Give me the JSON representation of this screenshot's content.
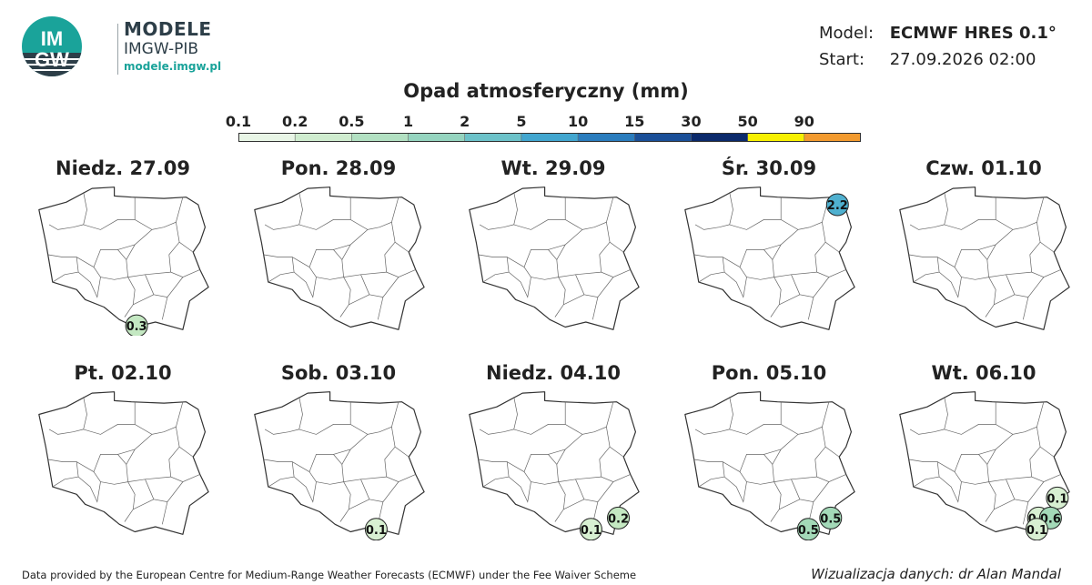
{
  "logo": {
    "mark_line1": "IM",
    "mark_line2": "GW",
    "title": "MODELE",
    "subtitle": "IMGW-PIB",
    "site": "modele.imgw.pl"
  },
  "info": {
    "model_label": "Model:",
    "model_value": "ECMWF HRES 0.1°",
    "start_label": "Start:",
    "start_value": "27.09.2026 02:00"
  },
  "title": "Opad atmosferyczny (mm)",
  "scale": {
    "labels": [
      "0.1",
      "0.2",
      "0.5",
      "1",
      "2",
      "5",
      "10",
      "15",
      "30",
      "50",
      "90"
    ],
    "colors": [
      "#e8f5e6",
      "#cfeccf",
      "#b2e0c2",
      "#95d4bf",
      "#6cc2c9",
      "#42a6cf",
      "#2a7cbd",
      "#1a4f98",
      "#0b2a6b",
      "#f7f000",
      "#f29a2e",
      "#e0231e"
    ]
  },
  "marker_colors": {
    "0.1": "#d8f0d2",
    "0.2": "#c4e8c2",
    "0.3": "#c4e8c2",
    "0.5": "#a3d9b8",
    "0.6": "#a3d9b8",
    "2.2": "#4fb0cf"
  },
  "maps": [
    {
      "day": "Niedz. 27.09",
      "markers": [
        {
          "value": "0.3",
          "lon": 19.9,
          "lat": 49.25
        }
      ]
    },
    {
      "day": "Pon. 28.09",
      "markers": []
    },
    {
      "day": "Wt. 29.09",
      "markers": []
    },
    {
      "day": "Śr. 30.09",
      "markers": [
        {
          "value": "2.2",
          "lon": 23.1,
          "lat": 54.1
        }
      ]
    },
    {
      "day": "Czw. 01.10",
      "markers": []
    },
    {
      "day": "Pt. 02.10",
      "markers": []
    },
    {
      "day": "Sob. 03.10",
      "markers": [
        {
          "value": "0.1",
          "lon": 21.3,
          "lat": 49.3
        }
      ]
    },
    {
      "day": "Niedz. 04.10",
      "markers": [
        {
          "value": "0.2",
          "lon": 22.9,
          "lat": 49.75
        },
        {
          "value": "0.1",
          "lon": 21.3,
          "lat": 49.3
        }
      ]
    },
    {
      "day": "Pon. 05.10",
      "markers": [
        {
          "value": "0.5",
          "lon": 22.7,
          "lat": 49.75
        },
        {
          "value": "0.5",
          "lon": 21.4,
          "lat": 49.3
        }
      ]
    },
    {
      "day": "Wt. 06.10",
      "markers": [
        {
          "value": "0.1",
          "lon": 23.4,
          "lat": 50.55
        },
        {
          "value": "0.1",
          "lon": 22.3,
          "lat": 49.75
        },
        {
          "value": "0.6",
          "lon": 23.0,
          "lat": 49.75
        },
        {
          "value": "0.1",
          "lon": 22.2,
          "lat": 49.3
        }
      ]
    }
  ],
  "footer": {
    "left": "Data provided by the European Centre for Medium-Range Weather Forecasts (ECMWF) under the Fee Waiver Scheme",
    "right": "Wizualizacja danych: dr Alan Mandal"
  }
}
